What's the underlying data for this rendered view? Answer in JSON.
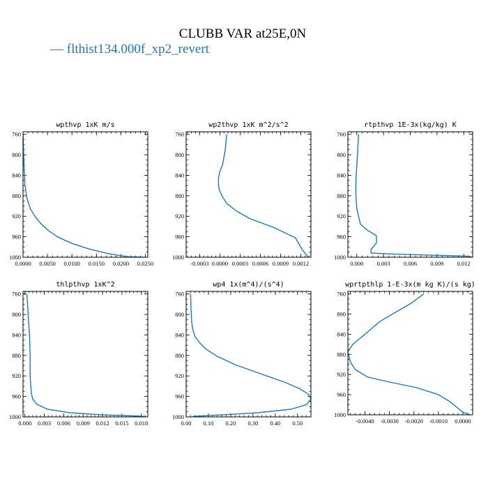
{
  "figure": {
    "title": "CLUBB VAR at25E,0N",
    "legend": "— flthist134.000f_xp2_revert",
    "series_color": "#1f77b4"
  },
  "chart_data": [
    {
      "type": "line",
      "title": "wpthvp  1xK m/s",
      "xlim": [
        0,
        0.0255
      ],
      "ylim": [
        1000,
        755
      ],
      "xticks": [
        0,
        0.005,
        0.01,
        0.015,
        0.02,
        0.025
      ],
      "xticklabels": [
        "0.0000",
        "0.0050",
        "0.0100",
        "0.0150",
        "0.0200",
        "0.0250"
      ],
      "yticks": [
        760,
        800,
        840,
        880,
        920,
        960,
        1000
      ],
      "yticklabels": [
        "760",
        "800",
        "840",
        "880",
        "920",
        "960",
        "1000"
      ],
      "series": [
        {
          "x": [
            0,
            0.0002,
            0.0004,
            0.0008,
            0.0015,
            0.0025,
            0.0037,
            0.0052,
            0.0072,
            0.01,
            0.0135,
            0.0175,
            0.0215,
            0.0248
          ],
          "y": [
            760,
            820,
            860,
            885,
            905,
            921,
            935,
            948,
            961,
            973,
            984,
            993,
            999,
            1000
          ]
        }
      ]
    },
    {
      "type": "line",
      "title": "wp2thvp  1xK m^2/s^2",
      "xlim": [
        -0.0005,
        0.00135
      ],
      "ylim": [
        1000,
        755
      ],
      "xticks": [
        -0.0003,
        0,
        0.0003,
        0.0006,
        0.0009,
        0.0012
      ],
      "xticklabels": [
        "-0.0003",
        "0.0000",
        "0.0003",
        "0.0006",
        "0.0009",
        "0.0012"
      ],
      "yticks": [
        760,
        800,
        840,
        880,
        920,
        960,
        1000
      ],
      "yticklabels": [
        "760",
        "800",
        "840",
        "880",
        "920",
        "960",
        "1000"
      ],
      "series": [
        {
          "x": [
            0.0001,
            8e-05,
            4e-05,
            -0.0,
            -2e-05,
            -2e-05,
            -1e-05,
            3e-05,
            0.0001,
            0.00025,
            0.00045,
            0.0008,
            0.00112,
            0.00122,
            0.00128,
            0.00131
          ],
          "y": [
            760,
            790,
            820,
            832,
            845,
            858,
            868,
            880,
            895,
            910,
            925,
            942,
            962,
            985,
            995,
            1000
          ]
        }
      ]
    },
    {
      "type": "line",
      "title": "rtpthvp  1E-3x(kg/kg) K",
      "xlim": [
        -0.001,
        0.013
      ],
      "ylim": [
        1000,
        755
      ],
      "xticks": [
        0,
        0.003,
        0.006,
        0.009,
        0.012
      ],
      "xticklabels": [
        "0.000",
        "0.003",
        "0.006",
        "0.009",
        "0.012"
      ],
      "yticks": [
        760,
        800,
        840,
        880,
        920,
        960,
        1000
      ],
      "yticklabels": [
        "760",
        "800",
        "840",
        "880",
        "920",
        "960",
        "1000"
      ],
      "series": [
        {
          "x": [
            0.0002,
            0.0001,
            0.0,
            -0.0001,
            -0.0001,
            0.0,
            0.0002,
            0.0004,
            0.001,
            0.0022,
            0.0022,
            0.0016,
            0.0016,
            0.0045,
            0.0085,
            0.0125,
            0.013
          ],
          "y": [
            760,
            790,
            820,
            850,
            880,
            905,
            920,
            935,
            945,
            958,
            972,
            985,
            992,
            994,
            996,
            998,
            1000
          ]
        }
      ]
    },
    {
      "type": "line",
      "title": "thlpthvp  1xK^2",
      "xlim": [
        -0.0003,
        0.019
      ],
      "ylim": [
        1000,
        755
      ],
      "xticks": [
        0,
        0.003,
        0.006,
        0.009,
        0.012,
        0.015,
        0.018
      ],
      "xticklabels": [
        "0.000",
        "0.003",
        "0.006",
        "0.009",
        "0.012",
        "0.015",
        "0.018"
      ],
      "yticks": [
        760,
        800,
        840,
        880,
        920,
        960,
        1000
      ],
      "yticklabels": [
        "760",
        "800",
        "840",
        "880",
        "920",
        "960",
        "1000"
      ],
      "series": [
        {
          "x": [
            0.0003,
            0.0005,
            0.0007,
            0.0008,
            0.0008,
            0.0009,
            0.001,
            0.0012,
            0.0018,
            0.0035,
            0.007,
            0.012,
            0.0165,
            0.0185
          ],
          "y": [
            760,
            800,
            840,
            880,
            920,
            940,
            955,
            965,
            975,
            985,
            992,
            996,
            998,
            999
          ]
        }
      ]
    },
    {
      "type": "line",
      "title": "wp4  1x(m^4)/(s^4)",
      "xlim": [
        0,
        0.56
      ],
      "ylim": [
        1000,
        755
      ],
      "xticks": [
        0,
        0.1,
        0.2,
        0.3,
        0.4,
        0.5
      ],
      "xticklabels": [
        "0.00",
        "0.10",
        "0.20",
        "0.30",
        "0.40",
        "0.50"
      ],
      "yticks": [
        760,
        800,
        840,
        880,
        920,
        960,
        1000
      ],
      "yticklabels": [
        "760",
        "800",
        "840",
        "880",
        "920",
        "960",
        "1000"
      ],
      "series": [
        {
          "x": [
            0.02,
            0.022,
            0.025,
            0.03,
            0.04,
            0.06,
            0.09,
            0.14,
            0.22,
            0.33,
            0.44,
            0.51,
            0.55,
            0.56,
            0.54,
            0.47,
            0.32,
            0.16,
            0.03
          ],
          "y": [
            760,
            790,
            815,
            830,
            843,
            855,
            868,
            882,
            898,
            915,
            932,
            945,
            956,
            965,
            976,
            985,
            992,
            996,
            999
          ]
        }
      ]
    },
    {
      "type": "line",
      "title": "wprtpthlp  1-E-3x(m kg K)/(s kg)",
      "xlim": [
        -0.0047,
        0.0004
      ],
      "ylim": [
        1000,
        755
      ],
      "xticks": [
        -0.004,
        -0.003,
        -0.002,
        -0.001,
        0
      ],
      "xticklabels": [
        "-0.0040",
        "-0.0030",
        "-0.0020",
        "-0.0010",
        "0.0000"
      ],
      "yticks": [
        760,
        800,
        840,
        880,
        920,
        960,
        1000
      ],
      "yticklabels": [
        "760",
        "800",
        "840",
        "880",
        "920",
        "960",
        "1000"
      ],
      "series": [
        {
          "x": [
            -0.0016,
            -0.0021,
            -0.0027,
            -0.0034,
            -0.004,
            -0.0045,
            -0.0047,
            -0.0046,
            -0.0044,
            -0.0039,
            -0.003,
            -0.0019,
            -0.001,
            -0.0005,
            -0.0002,
            0.0,
            0.0003
          ],
          "y": [
            760,
            778,
            795,
            815,
            840,
            860,
            875,
            895,
            910,
            925,
            935,
            946,
            960,
            975,
            987,
            995,
            1000
          ]
        }
      ]
    }
  ]
}
